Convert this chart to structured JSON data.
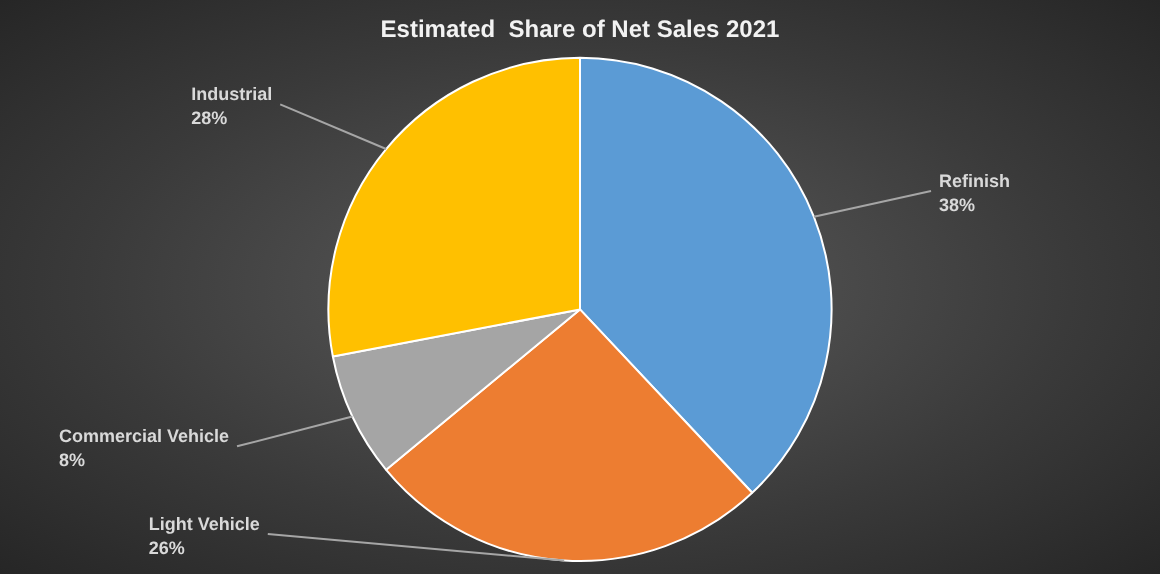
{
  "chart_data": {
    "type": "pie",
    "title": "Estimated  Share of Net Sales 2021",
    "categories": [
      "Refinish",
      "Light Vehicle",
      "Commercial Vehicle",
      "Industrial"
    ],
    "values": [
      38,
      26,
      8,
      28
    ],
    "colors": [
      "#5b9bd5",
      "#ed7d31",
      "#a5a5a5",
      "#ffc000"
    ],
    "value_labels": [
      "38%",
      "26%",
      "8%",
      "28%"
    ],
    "legend": false
  }
}
